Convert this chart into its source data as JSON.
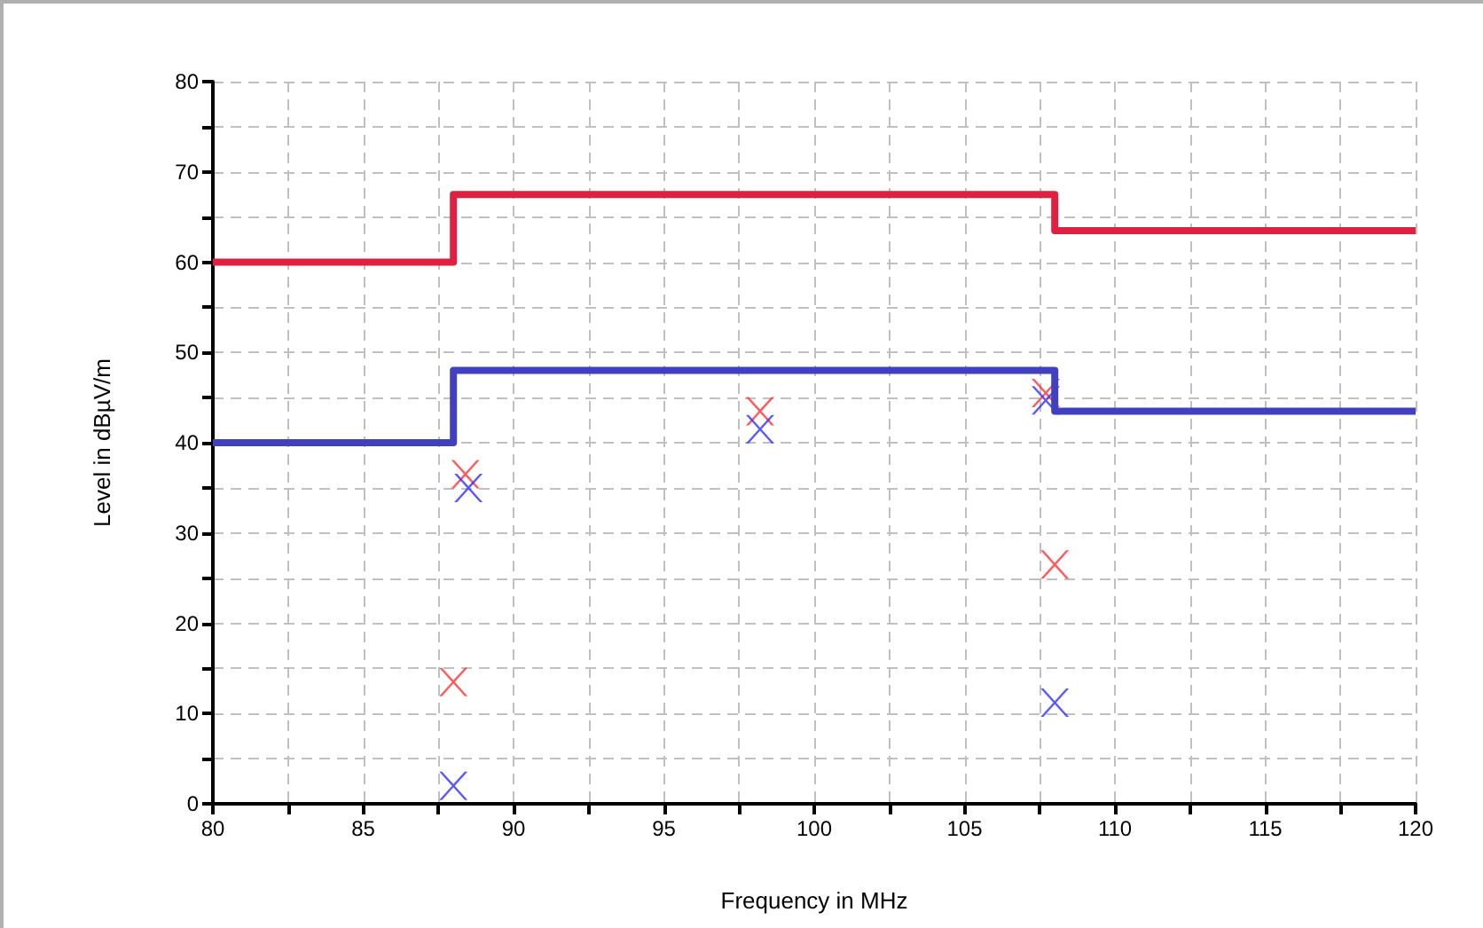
{
  "chart_data": {
    "type": "step",
    "xlabel": "Frequency in MHz",
    "ylabel": "Level in dBµV/m",
    "xlim": [
      80,
      120
    ],
    "ylim": [
      0,
      80
    ],
    "xticks": [
      80,
      {
        "value": 82.5,
        "label": null
      },
      85,
      {
        "value": 87.5,
        "label": null
      },
      90,
      {
        "value": 92.5,
        "label": null
      },
      95,
      {
        "value": 97.5,
        "label": null
      },
      100,
      {
        "value": 102.5,
        "label": null
      },
      105,
      {
        "value": 107.5,
        "label": null
      },
      110,
      {
        "value": 112.5,
        "label": null
      },
      115,
      {
        "value": 117.5,
        "label": null
      },
      120
    ],
    "yticks": [
      0,
      {
        "value": 5,
        "label": null
      },
      10,
      {
        "value": 15,
        "label": null
      },
      20,
      {
        "value": 25,
        "label": null
      },
      30,
      {
        "value": 35,
        "label": null
      },
      40,
      {
        "value": 45,
        "label": null
      },
      50,
      {
        "value": 55,
        "label": null
      },
      60,
      {
        "value": 65,
        "label": null
      },
      70,
      {
        "value": 75,
        "label": null
      },
      80
    ],
    "grid": true,
    "series": [
      {
        "color": "#e02040",
        "x": [
          80,
          88,
          108,
          120
        ],
        "values": [
          60,
          67.5,
          63.5,
          63.5
        ],
        "marker": "none"
      },
      {
        "color": "#4040c0",
        "x": [
          80,
          88,
          108,
          120
        ],
        "values": [
          40,
          48,
          43.5,
          43.5
        ],
        "marker": "none"
      },
      {
        "type": "scatter",
        "color": "#ff3030",
        "x": [
          88.4,
          88,
          98.2,
          107.7,
          108
        ],
        "values": [
          36.5,
          13.5,
          43.5,
          45.5,
          26.5
        ],
        "marker": "cross"
      },
      {
        "type": "scatter",
        "color": "#3030ff",
        "x": [
          88.5,
          88,
          98.2,
          107.7,
          108
        ],
        "values": [
          35,
          2,
          41.5,
          44.7,
          11.2
        ],
        "marker": "cross"
      }
    ]
  }
}
